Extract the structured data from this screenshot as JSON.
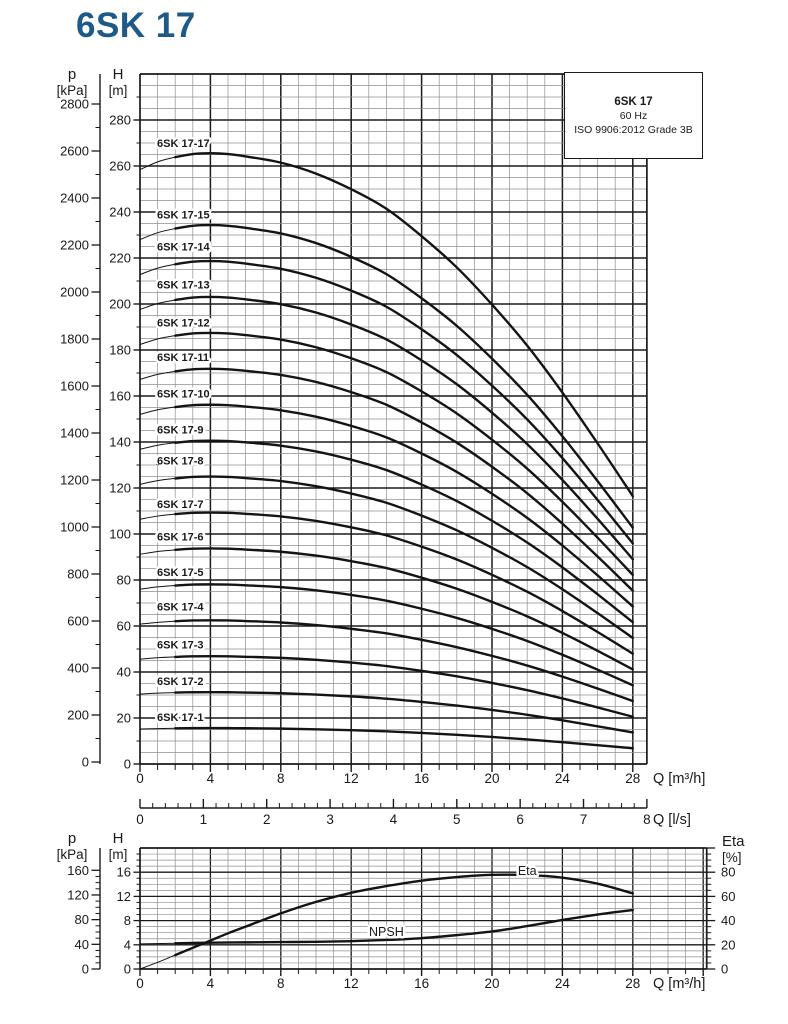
{
  "title": "6SK 17",
  "colors": {
    "ink": "#1a1a1a",
    "grid_minor": "#8f8f8f",
    "curve": "#141414",
    "title": "#1d5a8a"
  },
  "info_box": {
    "line1": "6SK 17",
    "line2": "60 Hz",
    "line3": "ISO 9906:2012 Grade 3B"
  },
  "stray_mark": "ˇ",
  "chart_data": [
    {
      "id": "head_vs_flow",
      "type": "line",
      "x_axis": {
        "label": "Q [m³/h]",
        "min": 0,
        "max": 28.8,
        "tick_labels": [
          0,
          4,
          8,
          12,
          16,
          20,
          24,
          28
        ],
        "minor_step": 1
      },
      "x_axis_secondary": {
        "label": "Q [l/s]",
        "tick_labels": [
          0,
          1,
          2,
          3,
          4,
          5,
          6,
          7,
          8
        ],
        "minor_step": 0.2,
        "m3h_per_ls": 3.6
      },
      "y_axis_head": {
        "header": "H",
        "unit": "[m]",
        "min": 0,
        "max": 300,
        "grid_minor_step": 5,
        "grid_major_step": 20,
        "tick_labels": [
          0,
          20,
          40,
          60,
          80,
          100,
          120,
          140,
          160,
          180,
          200,
          220,
          240,
          260,
          280
        ],
        "tick_minor_step": 10
      },
      "y_axis_pressure": {
        "header": "p",
        "unit": "[kPa]",
        "min": 0,
        "max": 2800,
        "tick_minor_step": 100,
        "tick_labels": [
          0,
          200,
          400,
          600,
          800,
          1000,
          1200,
          1400,
          1600,
          1800,
          2000,
          2200,
          2400,
          2600,
          2800
        ]
      },
      "unit_stage_curve": {
        "q": [
          0,
          1,
          2,
          3,
          4,
          5,
          6,
          8,
          10,
          12,
          14,
          16,
          18,
          20,
          22,
          24,
          26,
          28
        ],
        "h_per_stage": [
          15.2,
          15.4,
          15.52,
          15.6,
          15.62,
          15.6,
          15.54,
          15.38,
          15.1,
          14.7,
          14.2,
          13.5,
          12.7,
          11.75,
          10.7,
          9.5,
          8.2,
          6.85
        ]
      },
      "thick_from_q": 2,
      "series": [
        {
          "name": "6SK 17-17",
          "stages": 17,
          "label_h": 270
        },
        {
          "name": "6SK 17-15",
          "stages": 15,
          "label_h": 239
        },
        {
          "name": "6SK 17-14",
          "stages": 14,
          "label_h": 225
        },
        {
          "name": "6SK 17-13",
          "stages": 13,
          "label_h": 208.5
        },
        {
          "name": "6SK 17-12",
          "stages": 12,
          "label_h": 192
        },
        {
          "name": "6SK 17-11",
          "stages": 11,
          "label_h": 177
        },
        {
          "name": "6SK 17-10",
          "stages": 10,
          "label_h": 161
        },
        {
          "name": "6SK 17-9",
          "stages": 9,
          "label_h": 145.5
        },
        {
          "name": "6SK 17-8",
          "stages": 8,
          "label_h": 132
        },
        {
          "name": "6SK 17-7",
          "stages": 7,
          "label_h": 113
        },
        {
          "name": "6SK 17-6",
          "stages": 6,
          "label_h": 99
        },
        {
          "name": "6SK 17-5",
          "stages": 5,
          "label_h": 83.5
        },
        {
          "name": "6SK 17-4",
          "stages": 4,
          "label_h": 68.5
        },
        {
          "name": "6SK 17-3",
          "stages": 3,
          "label_h": 52
        },
        {
          "name": "6SK 17-2",
          "stages": 2,
          "label_h": 36
        },
        {
          "name": "6SK 17-1",
          "stages": 1,
          "label_h": 20.5
        }
      ]
    },
    {
      "id": "eta_npsh",
      "type": "line",
      "x_axis": {
        "label": "Q [m³/h]",
        "min": 0,
        "max": 32.2,
        "tick_labels": [
          0,
          4,
          8,
          12,
          16,
          20,
          24,
          28
        ],
        "minor_step": 1
      },
      "y_axis_head": {
        "header": "H",
        "unit": "[m]",
        "min": 0,
        "max": 20,
        "tick_labels": [
          0,
          4,
          8,
          12,
          16
        ],
        "tick_minor_step": 1
      },
      "y_axis_pressure": {
        "header": "p",
        "unit": "[kPa]",
        "min": 0,
        "max": 196,
        "tick_labels": [
          0,
          40,
          80,
          120,
          160
        ],
        "tick_minor_step": 10
      },
      "y_axis_eta": {
        "header": "Eta",
        "unit": "[%]",
        "min": 0,
        "max": 100,
        "tick_labels": [
          0,
          20,
          40,
          60,
          80
        ],
        "tick_minor_step": 5
      },
      "thick_from_q": 2,
      "series": [
        {
          "name": "Eta",
          "unit": "%",
          "q": [
            0,
            1,
            2,
            3,
            4,
            5,
            6,
            8,
            10,
            12,
            14,
            16,
            18,
            20,
            22,
            24,
            26,
            28
          ],
          "values": [
            0,
            5.5,
            11.5,
            17.5,
            23.5,
            29.5,
            35,
            46,
            55.5,
            63,
            68.5,
            73,
            76,
            77.8,
            77.6,
            75.5,
            70.5,
            62.5
          ],
          "label_at": {
            "q": 22,
            "pct": 81
          }
        },
        {
          "name": "NPSH",
          "unit": "m",
          "q": [
            0,
            2,
            4,
            6,
            8,
            10,
            12,
            14,
            16,
            18,
            20,
            22,
            24,
            26,
            28
          ],
          "values": [
            4.15,
            4.25,
            4.35,
            4.4,
            4.45,
            4.5,
            4.6,
            4.8,
            5.1,
            5.6,
            6.2,
            7.1,
            8.1,
            9.0,
            9.75
          ],
          "label_at": {
            "q": 14,
            "h": 6.1
          }
        }
      ]
    }
  ]
}
